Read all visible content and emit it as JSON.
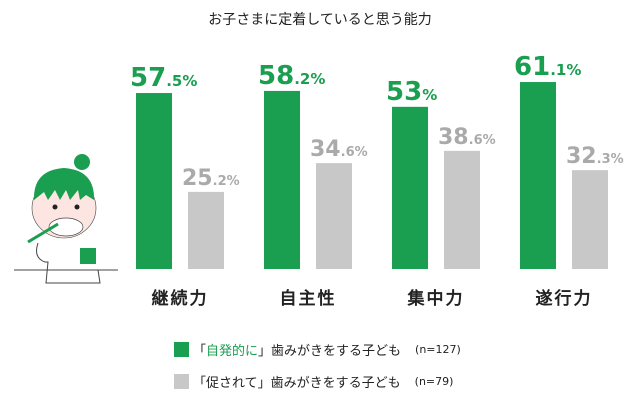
{
  "chart_data": {
    "type": "bar",
    "title": "お子さまに定着していると思う能力",
    "categories": [
      "継続力",
      "自主性",
      "集中力",
      "遂行力"
    ],
    "series": [
      {
        "name": "「自発的に」歯みがきをする子ども",
        "n": "(n=127)",
        "color": "#1a9e50",
        "values": [
          57.5,
          58.2,
          53,
          61.1
        ],
        "labels": [
          [
            "57",
            ".5%"
          ],
          [
            "58",
            ".2%"
          ],
          [
            "53",
            "%"
          ],
          [
            "61",
            ".1%"
          ]
        ]
      },
      {
        "name": "「促されて」歯みがきをする子ども",
        "n": "(n=79)",
        "color": "#c8c8c8",
        "values": [
          25.2,
          34.6,
          38.6,
          32.3
        ],
        "labels": [
          [
            "25",
            ".2%"
          ],
          [
            "34",
            ".6%"
          ],
          [
            "38",
            ".6%"
          ],
          [
            "32",
            ".3%"
          ]
        ]
      }
    ],
    "ylim": [
      0,
      65
    ],
    "unit": "%",
    "legend": "bottom"
  },
  "legend": [
    {
      "pre": "「",
      "key": "自発的に",
      "post": "」歯みがきをする子ども",
      "n": "(n=127)"
    },
    {
      "pre": "「",
      "key": "促されて",
      "post": "」歯みがきをする子ども",
      "n": "(n=79)"
    }
  ]
}
